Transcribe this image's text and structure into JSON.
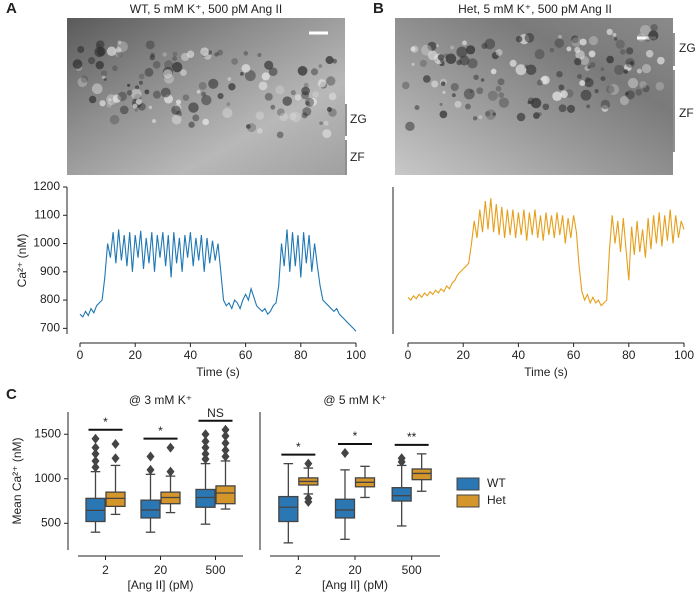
{
  "panels": [
    {
      "letter": "A",
      "image_title": "WT, 5 mM  K⁺, 500 pM Ang II",
      "zones": [
        "ZG",
        "ZF"
      ]
    },
    {
      "letter": "B",
      "image_title": "Het, 5 mM  K⁺, 500 pM Ang II",
      "zones": [
        "ZG",
        "ZF"
      ]
    },
    {
      "letter": "C"
    }
  ],
  "chart_data": [
    {
      "type": "line",
      "xlabel": "Time (s)",
      "ylabel": "Ca²⁺ (nM)",
      "xlim": [
        0,
        100
      ],
      "xticks": [
        0,
        20,
        40,
        60,
        80,
        100
      ],
      "ylim": [
        680,
        1200
      ],
      "yticks": [
        700,
        800,
        900,
        1000,
        1100,
        1200
      ],
      "x": [
        0,
        1,
        2,
        3,
        4,
        5,
        6,
        7,
        8,
        9,
        10,
        11,
        12,
        13,
        14,
        15,
        16,
        17,
        18,
        19,
        20,
        21,
        22,
        23,
        24,
        25,
        26,
        27,
        28,
        29,
        30,
        31,
        32,
        33,
        34,
        35,
        36,
        37,
        38,
        39,
        40,
        41,
        42,
        43,
        44,
        45,
        46,
        47,
        48,
        49,
        50,
        51,
        52,
        53,
        54,
        55,
        56,
        57,
        58,
        59,
        60,
        61,
        62,
        63,
        64,
        65,
        66,
        67,
        68,
        69,
        70,
        71,
        72,
        73,
        74,
        75,
        76,
        77,
        78,
        79,
        80,
        81,
        82,
        83,
        84,
        85,
        86,
        87,
        88,
        89,
        90,
        91,
        92,
        93,
        94,
        95,
        96,
        97,
        98,
        99,
        100
      ],
      "series": [
        {
          "color": "#1f77b4",
          "values": [
            750,
            740,
            760,
            745,
            770,
            755,
            780,
            790,
            800,
            880,
            1000,
            950,
            1040,
            930,
            1050,
            940,
            1030,
            920,
            1040,
            900,
            1030,
            950,
            1045,
            910,
            1020,
            930,
            1040,
            900,
            1030,
            950,
            1040,
            920,
            1030,
            880,
            1040,
            930,
            1020,
            900,
            1030,
            950,
            1040,
            920,
            1020,
            940,
            1030,
            900,
            1020,
            930,
            1010,
            940,
            1000,
            900,
            800,
            780,
            790,
            770,
            800,
            790,
            770,
            800,
            820,
            800,
            840,
            810,
            780,
            770,
            760,
            770,
            750,
            760,
            780,
            790,
            850,
            1000,
            920,
            1050,
            900,
            1040,
            920,
            1030,
            880,
            1040,
            930,
            1030,
            900,
            1000,
            920,
            850,
            800,
            790,
            780,
            770,
            760,
            770,
            750,
            740,
            730,
            720,
            710,
            700,
            690
          ]
        }
      ]
    },
    {
      "type": "line",
      "xlabel": "Time (s)",
      "xlim": [
        0,
        100
      ],
      "xticks": [
        0,
        20,
        40,
        60,
        80,
        100
      ],
      "ylim": [
        680,
        1200
      ],
      "x": [
        0,
        1,
        2,
        3,
        4,
        5,
        6,
        7,
        8,
        9,
        10,
        11,
        12,
        13,
        14,
        15,
        16,
        17,
        18,
        19,
        20,
        21,
        22,
        23,
        24,
        25,
        26,
        27,
        28,
        29,
        30,
        31,
        32,
        33,
        34,
        35,
        36,
        37,
        38,
        39,
        40,
        41,
        42,
        43,
        44,
        45,
        46,
        47,
        48,
        49,
        50,
        51,
        52,
        53,
        54,
        55,
        56,
        57,
        58,
        59,
        60,
        61,
        62,
        63,
        64,
        65,
        66,
        67,
        68,
        69,
        70,
        71,
        72,
        73,
        74,
        75,
        76,
        77,
        78,
        79,
        80,
        81,
        82,
        83,
        84,
        85,
        86,
        87,
        88,
        89,
        90,
        91,
        92,
        93,
        94,
        95,
        96,
        97,
        98,
        99,
        100
      ],
      "series": [
        {
          "color": "#e69f1c",
          "values": [
            810,
            800,
            815,
            805,
            820,
            810,
            825,
            815,
            830,
            820,
            835,
            825,
            840,
            830,
            850,
            840,
            860,
            870,
            890,
            900,
            910,
            920,
            930,
            1000,
            1080,
            1020,
            1120,
            1040,
            1150,
            1050,
            1160,
            1040,
            1140,
            1030,
            1130,
            1020,
            1120,
            1030,
            1120,
            1020,
            1110,
            1030,
            1120,
            1010,
            1110,
            1030,
            1120,
            1020,
            1100,
            1010,
            1110,
            1030,
            1100,
            1020,
            1110,
            1030,
            1100,
            1000,
            1090,
            1020,
            1100,
            1040,
            920,
            830,
            800,
            820,
            790,
            810,
            790,
            800,
            780,
            790,
            800,
            980,
            1100,
            1000,
            1080,
            970,
            1090,
            980,
            870,
            1060,
            960,
            1080,
            970,
            1050,
            950,
            1090,
            980,
            1100,
            1000,
            1110,
            990,
            1100,
            1010,
            1120,
            1000,
            1100,
            1020,
            1080,
            1050
          ]
        }
      ]
    },
    {
      "type": "box",
      "title": "@ 3 mM K⁺",
      "xlabel": "[Ang II] (pM)",
      "ylabel": "Mean Ca²⁺ (nM)",
      "categories": [
        "2",
        "20",
        "500"
      ],
      "ylim": [
        200,
        1750
      ],
      "yticks": [
        500,
        1000,
        1500
      ],
      "significance": [
        "*",
        "*",
        "NS"
      ],
      "series": [
        {
          "color": "#2a77b4",
          "boxes": [
            {
              "whislo": 400,
              "q1": 520,
              "med": 645,
              "q3": 780,
              "whishi": 1080,
              "fliers": [
                1130,
                1200,
                1280,
                1350,
                1450
              ]
            },
            {
              "whislo": 400,
              "q1": 560,
              "med": 650,
              "q3": 760,
              "whishi": 1050,
              "fliers": [
                1100,
                1250
              ]
            },
            {
              "whislo": 490,
              "q1": 680,
              "med": 790,
              "q3": 880,
              "whishi": 1170,
              "fliers": [
                1220,
                1280,
                1350,
                1420,
                1500
              ]
            }
          ]
        },
        {
          "color": "#d4952b",
          "boxes": [
            {
              "whislo": 600,
              "q1": 690,
              "med": 780,
              "q3": 850,
              "whishi": 1150,
              "fliers": [
                1230,
                1390
              ]
            },
            {
              "whislo": 620,
              "q1": 720,
              "med": 790,
              "q3": 850,
              "whishi": 1030,
              "fliers": [
                1080,
                1350
              ]
            },
            {
              "whislo": 660,
              "q1": 720,
              "med": 840,
              "q3": 920,
              "whishi": 1200,
              "fliers": [
                1250,
                1320,
                1400,
                1480,
                1550
              ]
            }
          ]
        }
      ]
    },
    {
      "type": "box",
      "title": "@ 5 mM K⁺",
      "xlabel": "[Ang II] (pM)",
      "categories": [
        "2",
        "20",
        "500"
      ],
      "ylim": [
        200,
        1750
      ],
      "significance": [
        "*",
        "*",
        "**"
      ],
      "legend": "right",
      "series": [
        {
          "name": "WT",
          "color": "#2a77b4",
          "boxes": [
            {
              "whislo": 280,
              "q1": 520,
              "med": 680,
              "q3": 800,
              "whishi": 1170,
              "fliers": []
            },
            {
              "whislo": 320,
              "q1": 560,
              "med": 650,
              "q3": 770,
              "whishi": 1100,
              "fliers": [
                1290
              ]
            },
            {
              "whislo": 470,
              "q1": 750,
              "med": 810,
              "q3": 900,
              "whishi": 1150,
              "fliers": [
                1190,
                1230
              ]
            }
          ]
        },
        {
          "name": "Het",
          "color": "#d4952b",
          "boxes": [
            {
              "whislo": 830,
              "q1": 930,
              "med": 970,
              "q3": 1010,
              "whishi": 1120,
              "fliers": [
                740,
                780,
                1170
              ]
            },
            {
              "whislo": 790,
              "q1": 910,
              "med": 960,
              "q3": 1010,
              "whishi": 1140,
              "fliers": []
            },
            {
              "whislo": 860,
              "q1": 990,
              "med": 1060,
              "q3": 1110,
              "whishi": 1280,
              "fliers": []
            }
          ]
        }
      ]
    }
  ]
}
